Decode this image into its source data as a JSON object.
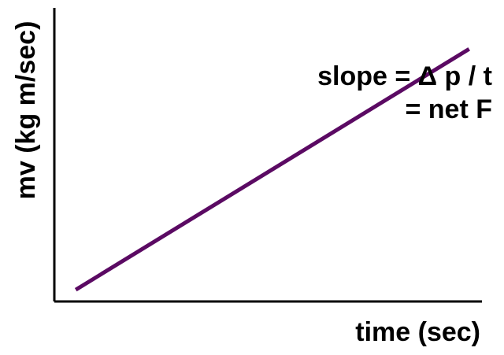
{
  "chart_data": {
    "type": "line",
    "title": "",
    "xlabel": "time (sec)",
    "ylabel": "mv (kg m/sec)",
    "grid": false,
    "legend": "none",
    "ticks": "none",
    "xlim": [
      0,
      1
    ],
    "ylim": [
      0,
      1
    ],
    "series": [
      {
        "x": [
          0.05,
          0.97
        ],
        "y": [
          0.04,
          0.86
        ],
        "color": "#5b0a63"
      }
    ],
    "annotations": [
      {
        "text": "slope = Δ p / t"
      },
      {
        "text": "= net F"
      }
    ]
  },
  "colors": {
    "axis": "#000000",
    "line": "#5b0a63",
    "background": "#ffffff"
  }
}
